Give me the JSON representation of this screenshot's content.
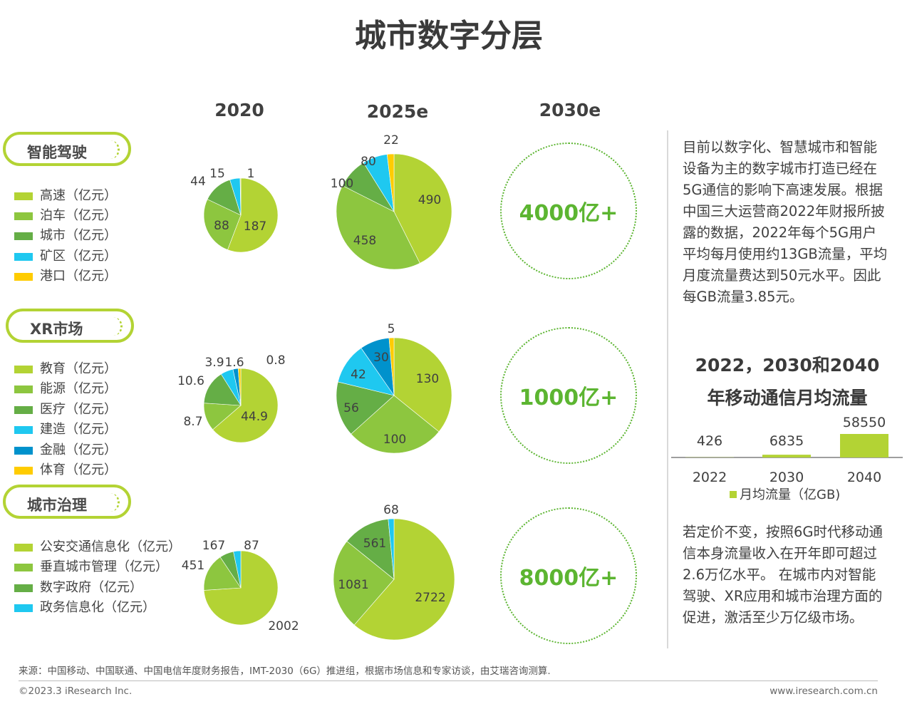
{
  "title": "城市数字分层",
  "years": [
    "2020",
    "2025e",
    "2030e"
  ],
  "colors": {
    "lime": "#b3d334",
    "green": "#8dc63f",
    "dark_green": "#65ae46",
    "cyan": "#1fc8f0",
    "blue": "#0092cc",
    "yellow": "#ffcc00",
    "accent": "#5cb531"
  },
  "chart_data": [
    {
      "type": "pie",
      "group": "智能驾驶",
      "categories": [
        "高速（亿元）",
        "泊车（亿元）",
        "城市（亿元）",
        "矿区（亿元）",
        "港口（亿元）"
      ],
      "series": [
        {
          "name": "2020",
          "values": [
            187,
            88,
            44,
            15,
            1
          ]
        },
        {
          "name": "2025e",
          "values": [
            490,
            458,
            100,
            80,
            22
          ]
        }
      ],
      "total_2030e": "4000亿+"
    },
    {
      "type": "pie",
      "group": "XR市场",
      "categories": [
        "教育（亿元）",
        "能源（亿元）",
        "医疗（亿元）",
        "建造（亿元）",
        "金融（亿元）",
        "体育（亿元）"
      ],
      "series": [
        {
          "name": "2020",
          "values": [
            44.9,
            8.7,
            10.6,
            3.9,
            1.6,
            0.8
          ]
        },
        {
          "name": "2025e",
          "values": [
            130,
            100,
            56,
            42,
            30,
            5
          ]
        }
      ],
      "total_2030e": "1000亿+"
    },
    {
      "type": "pie",
      "group": "城市治理",
      "categories": [
        "公安交通信息化（亿元）",
        "垂直城市管理（亿元）",
        "数字政府（亿元）",
        "政务信息化（亿元）"
      ],
      "series": [
        {
          "name": "2020",
          "values": [
            2002,
            451,
            167,
            87
          ]
        },
        {
          "name": "2025e",
          "values": [
            2722,
            1081,
            561,
            68
          ]
        }
      ],
      "total_2030e": "8000亿+"
    },
    {
      "type": "bar",
      "title": "2022，2030和2040年移动通信月均流量",
      "categories": [
        "2022",
        "2030",
        "2040"
      ],
      "series": [
        {
          "name": "月均流量（亿GB)",
          "values": [
            426,
            6835,
            58550
          ]
        }
      ]
    }
  ],
  "right": {
    "para1": "目前以数字化、智慧城市和智能设备为主的数字城市打造已经在5G通信的影响下高速发展。根据中国三大运营商2022年财报所披露的数据，2022年每个5G用户平均每月使用约13GB流量，平均月度流量费达到50元水平。因此每GB流量3.85元。",
    "chart_title_1": "2022，2030和2040",
    "chart_title_2": "年移动通信月均流量",
    "para2": "若定价不变，按照6G时代移动通信本身流量收入在开年即可超过2.6万亿水平。 在城市内对智能驾驶、XR应用和城市治理方面的促进，激活至少万亿级市场。"
  },
  "footer": {
    "source": "来源：中国移动、中国联通、中国电信年度财务报告，IMT-2030（6G）推进组，根据市场信息和专家访谈，由艾瑞咨询测算.",
    "copyright": "©2023.3 iResearch Inc.",
    "website": "www.iresearch.com.cn"
  }
}
